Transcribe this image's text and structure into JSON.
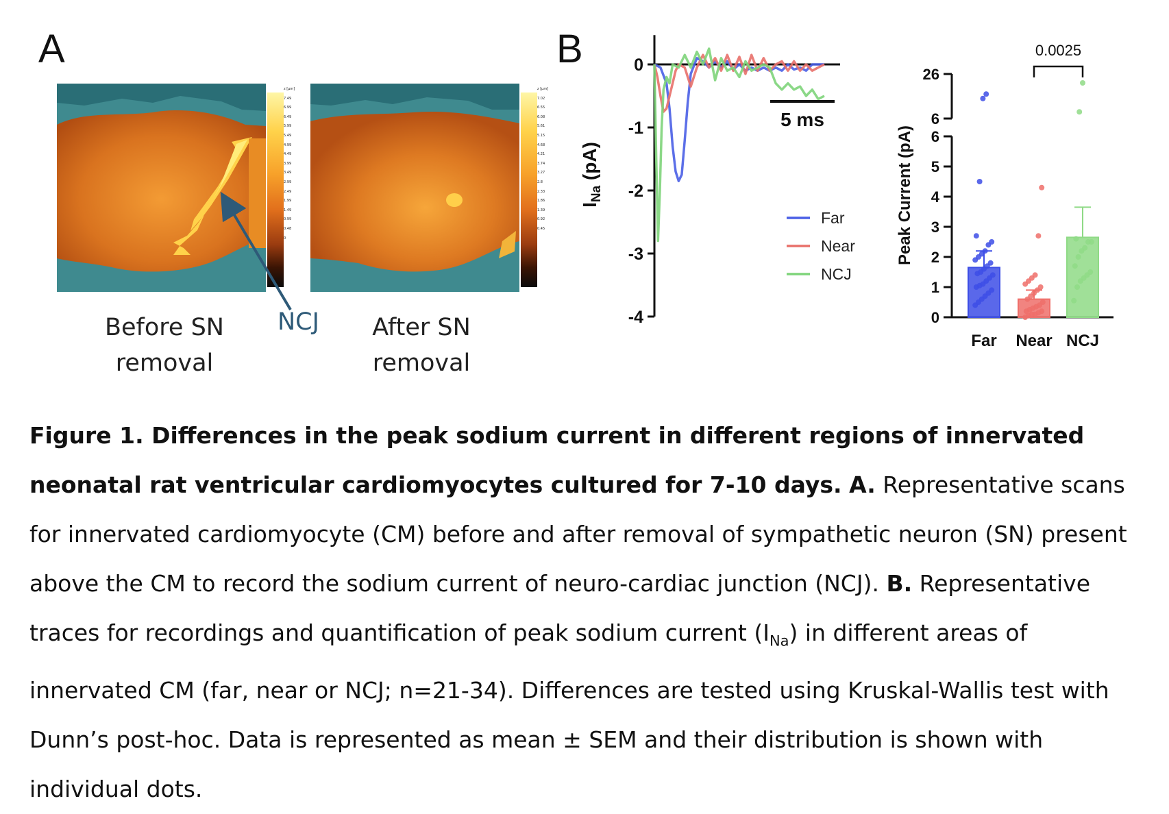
{
  "panel_a": {
    "letter": "A",
    "before_label_line1": "Before SN",
    "before_label_line2": "removal",
    "after_label_line1": "After SN",
    "after_label_line2": "removal",
    "arrow_label": "NCJ",
    "colorbar_before": {
      "unit": "z [µm]",
      "ticks": [
        "7.49",
        "6.99",
        "6.49",
        "5.99",
        "5.49",
        "4.99",
        "4.49",
        "3.99",
        "3.49",
        "2.99",
        "2.49",
        "1.99",
        "1.49",
        "0.99",
        "0.48",
        "0"
      ]
    },
    "colorbar_after": {
      "unit": "z [µm]",
      "ticks": [
        "7.02",
        "6.55",
        "6.08",
        "5.61",
        "5.15",
        "4.68",
        "4.21",
        "3.74",
        "3.27",
        "2.8",
        "2.33",
        "1.86",
        "1.39",
        "0.92",
        "0.45",
        ""
      ]
    },
    "colors": {
      "background": "#3f8a8f",
      "cell_low": "#c85a18",
      "cell_high": "#ffd24a",
      "arrow": "#2e5a78"
    }
  },
  "panel_b": {
    "letter": "B",
    "scale_bar_label": "5 ms",
    "asterisk_value": "0.0025"
  },
  "chart_data": [
    {
      "type": "line",
      "ylabel": "I",
      "ylabel_sub": "Na",
      "ylabel_unit": " (pA)",
      "yticks": [
        "0",
        "-1",
        "-2",
        "-3",
        "-4"
      ],
      "ylim": [
        -4,
        0.4
      ],
      "xlim": [
        0,
        30
      ],
      "series": [
        {
          "name": "Far",
          "color": "#4a5fe6",
          "x": [
            0,
            1,
            2,
            2.5,
            3,
            3.5,
            4,
            4.5,
            5,
            5.5,
            6,
            7,
            8,
            9,
            10,
            11,
            12,
            13,
            14,
            15,
            16,
            17,
            18,
            19,
            20,
            21,
            22,
            23,
            24,
            25,
            26,
            27,
            28
          ],
          "y": [
            0,
            -0.05,
            -0.3,
            -0.7,
            -1.3,
            -1.7,
            -1.85,
            -1.75,
            -1.2,
            -0.6,
            -0.15,
            0.1,
            0.05,
            -0.05,
            0.05,
            -0.05,
            0.05,
            -0.08,
            0.0,
            -0.1,
            -0.05,
            -0.1,
            -0.05,
            -0.1,
            -0.05,
            -0.1,
            0.0,
            -0.08,
            -0.05,
            -0.1,
            0.0,
            0.0,
            0.0
          ]
        },
        {
          "name": "Near",
          "color": "#e8706a",
          "x": [
            0,
            0.5,
            1,
            1.5,
            2,
            2.5,
            3,
            3.5,
            4,
            5,
            6,
            7,
            8,
            9,
            10,
            11,
            12,
            13,
            14,
            15,
            16,
            17,
            18,
            19,
            20,
            21,
            22,
            23,
            24,
            25,
            26,
            27,
            28
          ],
          "y": [
            0,
            -0.2,
            -0.5,
            -0.75,
            -0.7,
            -0.5,
            -0.3,
            -0.1,
            0.0,
            -0.05,
            -0.35,
            -0.05,
            0.15,
            -0.05,
            0.1,
            -0.1,
            0.15,
            -0.1,
            0.12,
            -0.15,
            0.15,
            -0.1,
            0.1,
            -0.1,
            0.0,
            0.05,
            -0.1,
            0.05,
            -0.1,
            0.0,
            -0.1,
            -0.05,
            0.0
          ]
        },
        {
          "name": "NCJ",
          "color": "#7ed47a",
          "x": [
            0,
            0.3,
            0.6,
            0.9,
            1.2,
            1.5,
            2,
            2.5,
            3,
            4,
            5,
            6,
            7,
            8,
            9,
            10,
            11,
            12,
            13,
            14,
            15,
            16,
            17,
            18,
            19,
            20,
            21,
            22,
            23,
            24,
            25,
            26,
            27,
            28
          ],
          "y": [
            0,
            -1.5,
            -2.8,
            -2.0,
            -1.0,
            -0.4,
            -0.2,
            -0.3,
            0.0,
            -0.05,
            0.15,
            -0.05,
            0.2,
            0.0,
            0.25,
            -0.25,
            0.1,
            -0.1,
            -0.05,
            -0.2,
            0.05,
            -0.1,
            -0.05,
            0.0,
            -0.05,
            -0.3,
            -0.4,
            -0.3,
            -0.4,
            -0.35,
            -0.5,
            -0.4,
            -0.55,
            -0.5
          ]
        }
      ]
    },
    {
      "type": "bar",
      "ylabel": "Peak Current (pA)",
      "categories": [
        "Far",
        "Near",
        "NCJ"
      ],
      "colors": [
        "#3d4ee6",
        "#ef6f6a",
        "#8fda86"
      ],
      "means": [
        1.65,
        0.6,
        2.65
      ],
      "sem": [
        0.55,
        0.3,
        1.0
      ],
      "ylim_lower": [
        0,
        6
      ],
      "ylim_upper": [
        6,
        26
      ],
      "yticks_lower": [
        "0",
        "1",
        "2",
        "3",
        "4",
        "5",
        "6"
      ],
      "yticks_upper": [
        "6",
        "26"
      ],
      "points": {
        "Far": [
          0.4,
          0.5,
          0.6,
          0.7,
          0.8,
          0.9,
          1.0,
          1.05,
          1.1,
          1.2,
          1.3,
          1.4,
          1.45,
          1.5,
          1.6,
          1.7,
          1.8,
          1.9,
          2.0,
          2.1,
          2.2,
          2.4,
          2.5,
          2.7,
          4.5,
          15,
          17
        ],
        "Near": [
          0.0,
          0.05,
          0.1,
          0.1,
          0.15,
          0.2,
          0.2,
          0.25,
          0.3,
          0.35,
          0.4,
          0.5,
          0.6,
          0.7,
          0.8,
          0.9,
          1.0,
          1.1,
          1.2,
          1.3,
          1.4,
          2.7,
          4.3
        ],
        "NCJ": [
          0.55,
          1.0,
          1.2,
          1.3,
          1.4,
          1.5,
          1.7,
          2.0,
          2.2,
          2.3,
          2.5,
          2.5,
          2.6,
          9,
          22
        ]
      }
    }
  ],
  "caption": {
    "bold_part": "Figure 1. Differences in the peak sodium current in different regions of innervated neonatal rat ventricular cardiomyocytes cultured for 7-10 days.",
    "a_label": "A.",
    "a_text": "Representative scans for innervated cardiomyocyte (CM) before and after removal of sympathetic neuron (SN) present above the CM to record the sodium current of neuro-cardiac junction (NCJ).",
    "b_label": "B.",
    "b_text_1": "Representative traces for recordings and quantification of peak sodium current (I",
    "b_sub": "Na",
    "b_text_2": ") in different areas of innervated CM (far, near or NCJ; n=21-34). Differences are tested using Kruskal-Wallis test with Dunn’s post-hoc. Data is represented as mean ± SEM and their distribution is shown with individual dots."
  }
}
